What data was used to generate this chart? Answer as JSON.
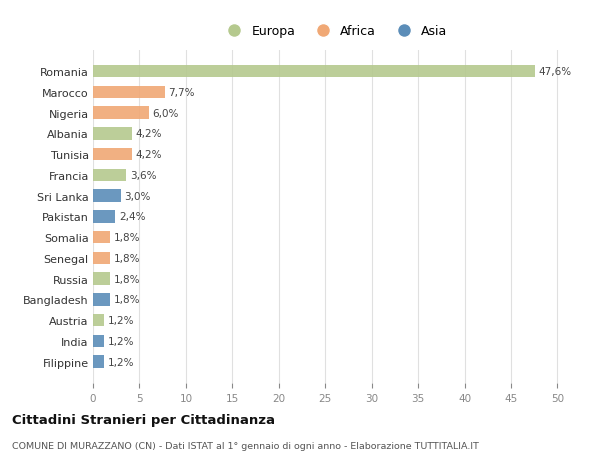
{
  "countries": [
    "Romania",
    "Marocco",
    "Nigeria",
    "Albania",
    "Tunisia",
    "Francia",
    "Sri Lanka",
    "Pakistan",
    "Somalia",
    "Senegal",
    "Russia",
    "Bangladesh",
    "Austria",
    "India",
    "Filippine"
  ],
  "values": [
    47.6,
    7.7,
    6.0,
    4.2,
    4.2,
    3.6,
    3.0,
    2.4,
    1.8,
    1.8,
    1.8,
    1.8,
    1.2,
    1.2,
    1.2
  ],
  "labels": [
    "47,6%",
    "7,7%",
    "6,0%",
    "4,2%",
    "4,2%",
    "3,6%",
    "3,0%",
    "2,4%",
    "1,8%",
    "1,8%",
    "1,8%",
    "1,8%",
    "1,2%",
    "1,2%",
    "1,2%"
  ],
  "continents": [
    "Europa",
    "Africa",
    "Africa",
    "Europa",
    "Africa",
    "Europa",
    "Asia",
    "Asia",
    "Africa",
    "Africa",
    "Europa",
    "Asia",
    "Europa",
    "Asia",
    "Asia"
  ],
  "colors": {
    "Europa": "#b5c98e",
    "Africa": "#f0a875",
    "Asia": "#5b8db8"
  },
  "title": "Cittadini Stranieri per Cittadinanza",
  "subtitle": "COMUNE DI MURAZZANO (CN) - Dati ISTAT al 1° gennaio di ogni anno - Elaborazione TUTTITALIA.IT",
  "xlim": [
    0,
    52
  ],
  "background_color": "#ffffff",
  "grid_color": "#e0e0e0"
}
